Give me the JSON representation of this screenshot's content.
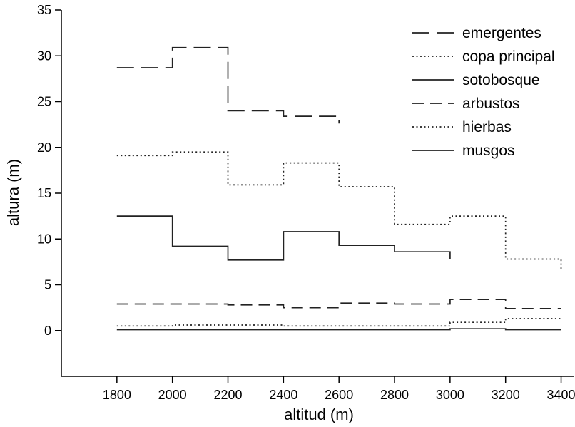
{
  "chart_data": {
    "type": "line",
    "line_shape": "step",
    "xlabel": "altitud (m)",
    "ylabel": "altura (m)",
    "xlim": [
      1600,
      3450
    ],
    "ylim": [
      -5,
      35
    ],
    "x_ticks": [
      1800,
      2000,
      2200,
      2400,
      2600,
      2800,
      3000,
      3200,
      3400
    ],
    "y_ticks": [
      0,
      5,
      10,
      15,
      20,
      25,
      30,
      35
    ],
    "grid": false,
    "legend_position": "top-right",
    "series": [
      {
        "name": "emergentes",
        "line_style": "long-dash",
        "color": "#222222",
        "x": [
          1800,
          2000,
          2200,
          2400,
          2600
        ],
        "values": [
          28.7,
          30.9,
          24.0,
          23.4,
          22.6
        ]
      },
      {
        "name": "copa principal",
        "line_style": "dotted",
        "color": "#222222",
        "x": [
          1800,
          2000,
          2200,
          2400,
          2600,
          2800,
          3000,
          3200,
          3400
        ],
        "values": [
          19.1,
          19.5,
          15.9,
          18.3,
          15.7,
          11.6,
          12.5,
          7.8,
          6.5
        ]
      },
      {
        "name": "sotobosque",
        "line_style": "solid",
        "color": "#222222",
        "x": [
          1800,
          2000,
          2200,
          2400,
          2600,
          2800,
          3000
        ],
        "values": [
          12.5,
          9.2,
          7.7,
          10.8,
          9.3,
          8.6,
          7.8
        ]
      },
      {
        "name": "arbustos",
        "line_style": "dashed",
        "color": "#222222",
        "x": [
          1800,
          2000,
          2200,
          2400,
          2600,
          2800,
          3000,
          3200,
          3400
        ],
        "values": [
          2.9,
          2.9,
          2.8,
          2.5,
          3.0,
          2.9,
          3.4,
          2.4,
          2.4
        ]
      },
      {
        "name": "hierbas",
        "line_style": "dotted",
        "color": "#222222",
        "x": [
          1800,
          2000,
          2200,
          2400,
          2600,
          2800,
          3000,
          3200,
          3400
        ],
        "values": [
          0.5,
          0.6,
          0.6,
          0.5,
          0.5,
          0.5,
          0.9,
          1.3,
          1.3
        ]
      },
      {
        "name": "musgos",
        "line_style": "solid",
        "color": "#222222",
        "x": [
          1800,
          2000,
          2200,
          2400,
          2600,
          2800,
          3000,
          3200,
          3400
        ],
        "values": [
          0.1,
          0.1,
          0.1,
          0.1,
          0.1,
          0.1,
          0.2,
          0.1,
          0.1
        ]
      }
    ]
  }
}
